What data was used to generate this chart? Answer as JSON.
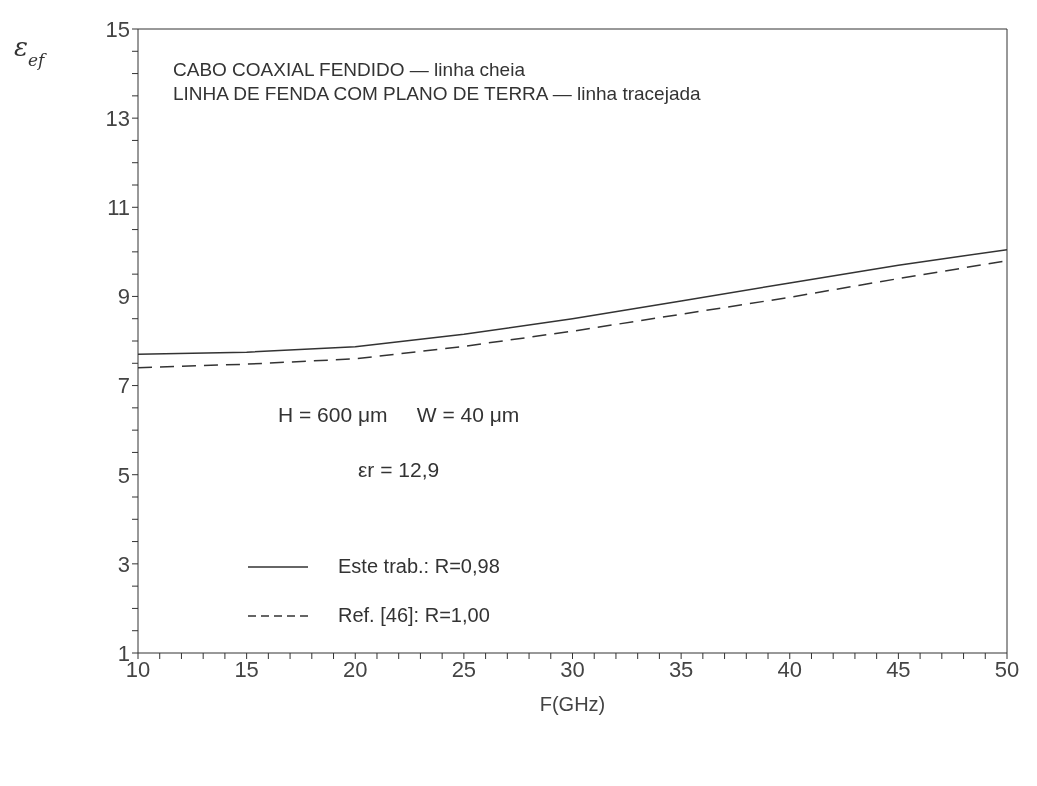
{
  "chart_data": {
    "type": "line",
    "xlabel": "F(GHz)",
    "ylabel": "ε$_{ef}$",
    "x": [
      10,
      15,
      20,
      25,
      30,
      35,
      40,
      45,
      50
    ],
    "series": [
      {
        "name": "Este trab.: R=0,98",
        "color": "#333333",
        "line_style": "solid",
        "values": [
          7.7,
          7.75,
          7.87,
          8.15,
          8.5,
          8.9,
          9.3,
          9.7,
          10.05
        ]
      },
      {
        "name": "Ref. [46]: R=1,00",
        "color": "#333333",
        "line_style": "dashed",
        "values": [
          7.4,
          7.48,
          7.6,
          7.88,
          8.22,
          8.6,
          8.98,
          9.4,
          9.8
        ]
      }
    ],
    "xlim": [
      10,
      50
    ],
    "xticks": [
      10,
      {
        "value": 11,
        "label": null
      },
      {
        "value": 12,
        "label": null
      },
      {
        "value": 13,
        "label": null
      },
      {
        "value": 14,
        "label": null
      },
      15,
      {
        "value": 16,
        "label": null
      },
      {
        "value": 17,
        "label": null
      },
      {
        "value": 18,
        "label": null
      },
      {
        "value": 19,
        "label": null
      },
      20,
      {
        "value": 21,
        "label": null
      },
      {
        "value": 22,
        "label": null
      },
      {
        "value": 23,
        "label": null
      },
      {
        "value": 24,
        "label": null
      },
      25,
      {
        "value": 26,
        "label": null
      },
      {
        "value": 27,
        "label": null
      },
      {
        "value": 28,
        "label": null
      },
      {
        "value": 29,
        "label": null
      },
      30,
      {
        "value": 31,
        "label": null
      },
      {
        "value": 32,
        "label": null
      },
      {
        "value": 33,
        "label": null
      },
      {
        "value": 34,
        "label": null
      },
      35,
      {
        "value": 36,
        "label": null
      },
      {
        "value": 37,
        "label": null
      },
      {
        "value": 38,
        "label": null
      },
      {
        "value": 39,
        "label": null
      },
      40,
      {
        "value": 41,
        "label": null
      },
      {
        "value": 42,
        "label": null
      },
      {
        "value": 43,
        "label": null
      },
      {
        "value": 44,
        "label": null
      },
      45,
      {
        "value": 46,
        "label": null
      },
      {
        "value": 47,
        "label": null
      },
      {
        "value": 48,
        "label": null
      },
      {
        "value": 49,
        "label": null
      },
      50
    ],
    "ylim": [
      1,
      15
    ],
    "yticks": [
      1,
      {
        "value": 1.5,
        "label": null
      },
      {
        "value": 2,
        "label": null
      },
      {
        "value": 2.5,
        "label": null
      },
      3,
      {
        "value": 3.5,
        "label": null
      },
      {
        "value": 4,
        "label": null
      },
      {
        "value": 4.5,
        "label": null
      },
      5,
      {
        "value": 5.5,
        "label": null
      },
      {
        "value": 6,
        "label": null
      },
      {
        "value": 6.5,
        "label": null
      },
      7,
      {
        "value": 7.5,
        "label": null
      },
      {
        "value": 8,
        "label": null
      },
      {
        "value": 8.5,
        "label": null
      },
      9,
      {
        "value": 9.5,
        "label": null
      },
      {
        "value": 10,
        "label": null
      },
      {
        "value": 10.5,
        "label": null
      },
      11,
      {
        "value": 11.5,
        "label": null
      },
      {
        "value": 12,
        "label": null
      },
      {
        "value": 12.5,
        "label": null
      },
      13,
      {
        "value": 13.5,
        "label": null
      },
      {
        "value": 14,
        "label": null
      },
      {
        "value": 14.5,
        "label": null
      },
      15
    ],
    "grid": false,
    "marker": "none",
    "legend": "bottom left",
    "annotations": [
      "CABO COAXIAL FENDIDO — linha cheia",
      "LINHA DE FENDA COM PLANO DE TERRA — linha tracejada",
      "H = 600 μm     W = 40 μm",
      "εr = 12,9"
    ]
  }
}
